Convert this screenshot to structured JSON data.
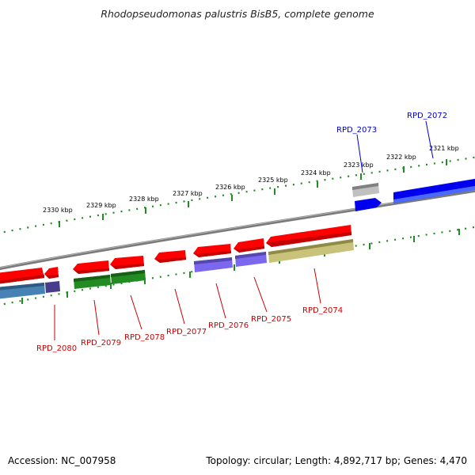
{
  "title": "Rhodopseudomonas palustris BisB5, complete genome",
  "footer": {
    "accession": "Accession: NC_007958",
    "stats": "Topology: circular; Length: 4,892,717 bp; Genes: 4,470"
  },
  "colors": {
    "forward_strand": "#ff0000",
    "gene_red": "#e00000",
    "gene_blue": "#0000ff",
    "gene_green": "#228b22",
    "gene_purple": "#6a5acd",
    "gene_olive": "#bdb76b",
    "gene_steelblue": "#4682b4",
    "gene_gray": "#a9a9a9",
    "ticks": "#228b22",
    "backbone": "#808080",
    "label_reverse": "#cc0000",
    "label_forward": "#0000cc"
  },
  "ticks": [
    {
      "kbp": 2321,
      "label": "2321 kbp"
    },
    {
      "kbp": 2322,
      "label": "2322 kbp"
    },
    {
      "kbp": 2323,
      "label": "2323 kbp"
    },
    {
      "kbp": 2324,
      "label": "2324 kbp"
    },
    {
      "kbp": 2325,
      "label": "2325 kbp"
    },
    {
      "kbp": 2326,
      "label": "2326 kbp"
    },
    {
      "kbp": 2327,
      "label": "2327 kbp"
    },
    {
      "kbp": 2328,
      "label": "2328 kbp"
    },
    {
      "kbp": 2329,
      "label": "2329 kbp"
    },
    {
      "kbp": 2330,
      "label": "2330 kbp"
    }
  ],
  "genes": [
    {
      "id": "RPD_2072",
      "label": "RPD_2072",
      "strand": "forward"
    },
    {
      "id": "RPD_2073",
      "label": "RPD_2073",
      "strand": "forward"
    },
    {
      "id": "RPD_2074",
      "label": "RPD_2074",
      "strand": "reverse"
    },
    {
      "id": "RPD_2075",
      "label": "RPD_2075",
      "strand": "reverse"
    },
    {
      "id": "RPD_2076",
      "label": "RPD_2076",
      "strand": "reverse"
    },
    {
      "id": "RPD_2077",
      "label": "RPD_2077",
      "strand": "reverse"
    },
    {
      "id": "RPD_2078",
      "label": "RPD_2078",
      "strand": "reverse"
    },
    {
      "id": "RPD_2079",
      "label": "RPD_2079",
      "strand": "reverse"
    },
    {
      "id": "RPD_2080",
      "label": "RPD_2080",
      "strand": "reverse"
    }
  ]
}
